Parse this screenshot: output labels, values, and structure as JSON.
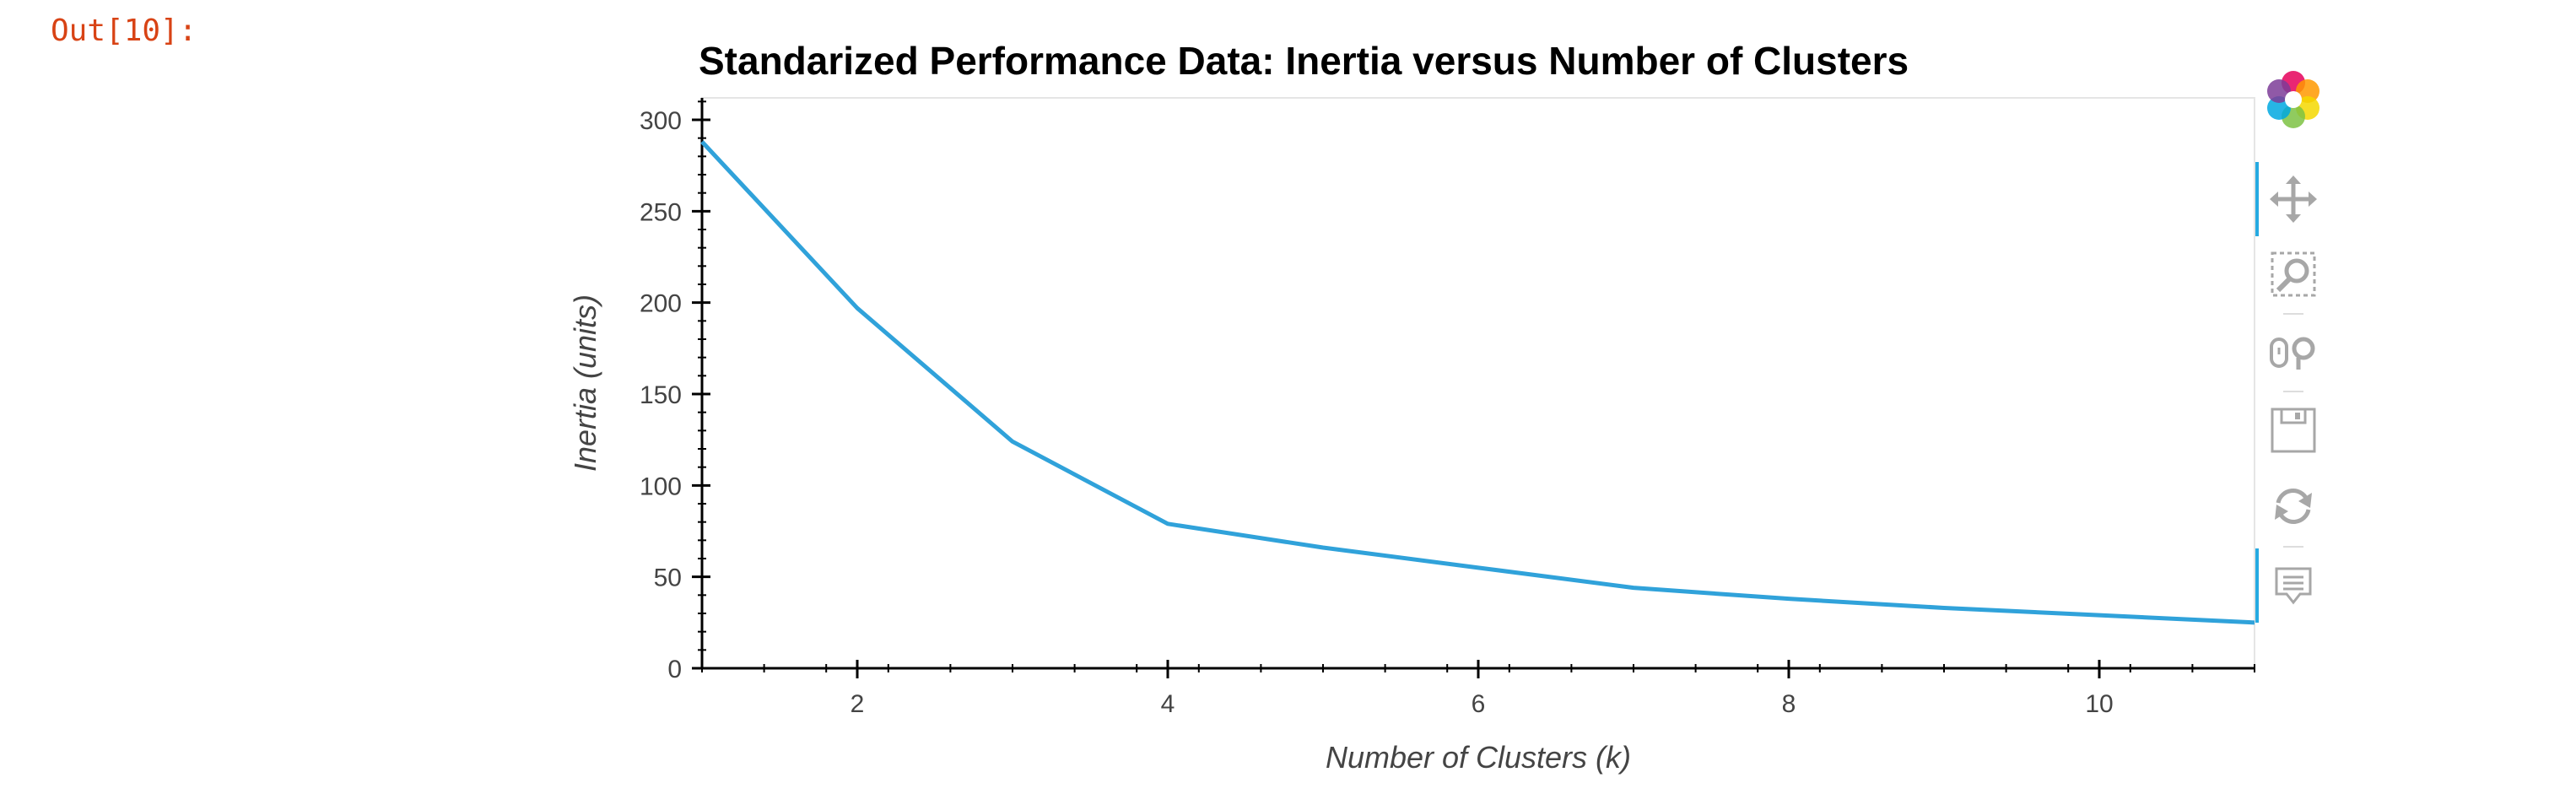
{
  "cell": {
    "out_prompt": "Out[10]:"
  },
  "chart_data": {
    "type": "line",
    "title": "Standarized Performance Data: Inertia versus Number of Clusters",
    "xlabel": "Number of Clusters (k)",
    "ylabel": "Inertia (units)",
    "xlim": [
      1,
      11
    ],
    "ylim": [
      0,
      312
    ],
    "x_ticks": [
      2,
      4,
      6,
      8,
      10
    ],
    "y_ticks": [
      0,
      50,
      100,
      150,
      200,
      250,
      300
    ],
    "grid": false,
    "series": [
      {
        "x": [
          1,
          2,
          3,
          4,
          5,
          6,
          7,
          8,
          9,
          10,
          11
        ],
        "values": [
          288,
          197,
          124,
          79,
          66,
          55,
          44,
          38,
          33,
          29,
          25
        ],
        "color": "#30a2da"
      }
    ]
  },
  "toolbar": {
    "icons": [
      "bokeh-logo-icon",
      "pan-icon",
      "box-zoom-icon",
      "wheel-zoom-icon",
      "save-icon",
      "reset-icon",
      "hover-icon"
    ],
    "active_color": "#26aae1",
    "icon_color": "#a7a7a7"
  }
}
